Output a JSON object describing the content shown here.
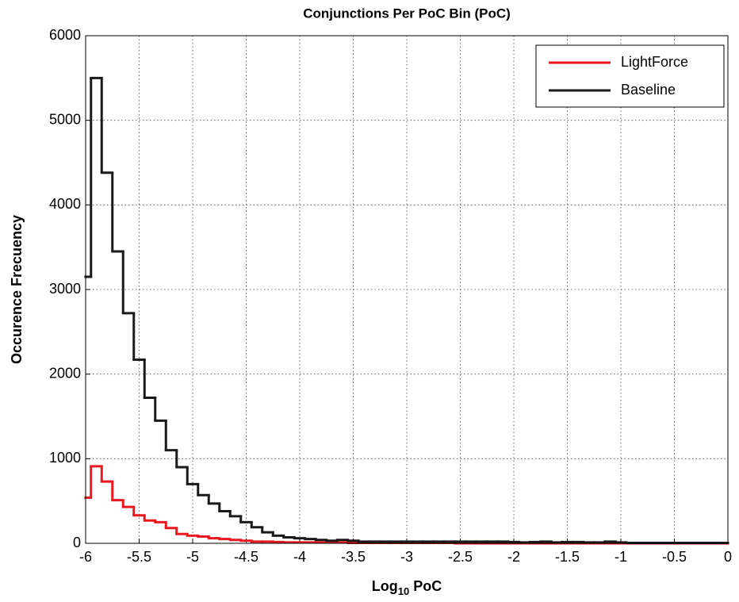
{
  "chart_data": {
    "type": "histogram",
    "title": "Conjunctions Per PoC Bin (PoC)",
    "xlabel": {
      "base": "Log",
      "subscript": "10",
      "rest": "PoC"
    },
    "ylabel": "Occurence Frecuency",
    "bins": [
      -6,
      -5.95,
      -5.85,
      -5.75,
      -5.65,
      -5.55,
      -5.45,
      -5.35,
      -5.25,
      -5.15,
      -5.05,
      -4.95,
      -4.85,
      -4.75,
      -4.65,
      -4.55,
      -4.45,
      -4.35,
      -4.25,
      -4.15,
      -4.05,
      -3.95,
      -3.85,
      -3.75,
      -3.65,
      -3.55,
      -3.45,
      -3.35,
      -3.25,
      -3.15,
      -3.05,
      -2.95,
      -2.85,
      -2.75,
      -2.65,
      -2.55,
      -2.45,
      -2.35,
      -2.25,
      -2.15,
      -2.05,
      -1.95,
      -1.85,
      -1.75,
      -1.65,
      -1.55,
      -1.45,
      -1.35,
      -1.25,
      -1.15,
      -1.05,
      -0.95,
      -0.85,
      -0.75,
      -0.65,
      -0.55,
      -0.45,
      -0.35,
      -0.25,
      -0.15,
      -0.05,
      0
    ],
    "series": [
      {
        "name": "LightForce",
        "color": "#e8191f",
        "values": [
          540,
          910,
          730,
          510,
          430,
          330,
          270,
          250,
          180,
          110,
          90,
          80,
          60,
          50,
          40,
          30,
          20,
          20,
          15,
          10,
          10,
          10,
          10,
          10,
          10,
          5,
          5,
          5,
          5,
          5,
          5,
          5,
          5,
          5,
          5,
          0,
          0,
          0,
          0,
          0,
          0,
          0,
          0,
          0,
          0,
          0,
          0,
          0,
          0,
          0,
          0,
          0,
          0,
          0,
          0,
          0,
          0,
          0,
          0,
          0,
          0
        ]
      },
      {
        "name": "Baseline",
        "color": "#1a1a1a",
        "values": [
          3150,
          5500,
          4380,
          3450,
          2720,
          2170,
          1720,
          1450,
          1100,
          900,
          700,
          570,
          470,
          380,
          320,
          250,
          190,
          130,
          90,
          70,
          60,
          50,
          40,
          30,
          40,
          30,
          20,
          20,
          20,
          20,
          20,
          20,
          20,
          20,
          20,
          20,
          20,
          20,
          20,
          20,
          15,
          10,
          15,
          20,
          10,
          15,
          15,
          10,
          10,
          20,
          10,
          5,
          5,
          5,
          5,
          5,
          5,
          5,
          5,
          5,
          5
        ]
      }
    ],
    "xlim": [
      -6,
      0
    ],
    "xticks": [
      -6,
      -5.5,
      -5,
      -4.5,
      -4,
      -3.5,
      -3,
      -2.5,
      -2,
      -1.5,
      -1,
      -0.5,
      0
    ],
    "ylim": [
      0,
      6000
    ],
    "yticks": [
      0,
      1000,
      2000,
      3000,
      4000,
      5000,
      6000
    ],
    "grid": true,
    "legend": "top-right"
  }
}
